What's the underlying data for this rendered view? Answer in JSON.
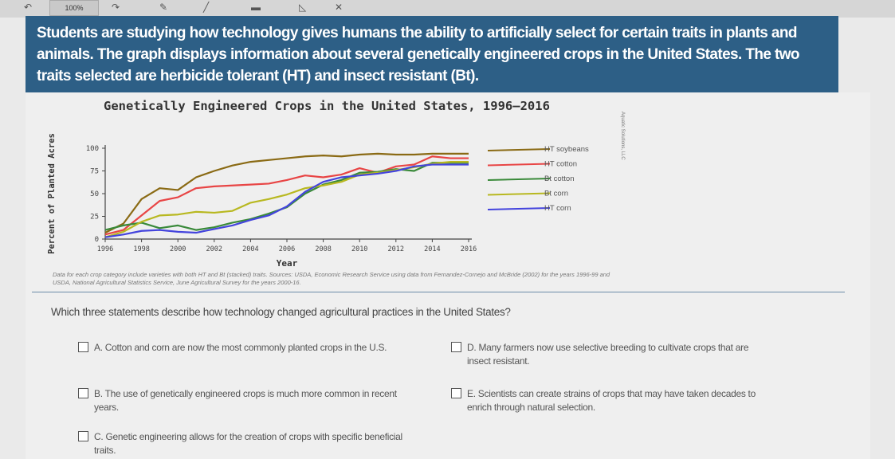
{
  "toolbar": {
    "zoom": "100%"
  },
  "banner": {
    "text": "Students are studying how technology gives humans the ability to artificially select for certain traits in plants and animals. The graph displays information about several genetically engineered crops in the United States. The two traits selected are herbicide tolerant (HT) and insect resistant (Bt)."
  },
  "chart_data": {
    "type": "line",
    "title": "Genetically Engineered Crops in the United States, 1996–2016",
    "xlabel": "Year",
    "ylabel": "Percent of Planted Acres",
    "x": [
      1996,
      1997,
      1998,
      1999,
      2000,
      2001,
      2002,
      2003,
      2004,
      2005,
      2006,
      2007,
      2008,
      2009,
      2010,
      2011,
      2012,
      2013,
      2014,
      2015,
      2016
    ],
    "x_ticks": [
      "1996",
      "1998",
      "2000",
      "2002",
      "2004",
      "2006",
      "2008",
      "2010",
      "2012",
      "2014",
      "2016"
    ],
    "y_ticks": [
      "0",
      "25",
      "50",
      "75",
      "100"
    ],
    "ylim": [
      0,
      100
    ],
    "legend_position": "right",
    "series": [
      {
        "name": "HT soybeans",
        "color": "#8a6a14",
        "values": [
          7,
          17,
          44,
          56,
          54,
          68,
          75,
          81,
          85,
          87,
          89,
          91,
          92,
          91,
          93,
          94,
          93,
          93,
          94,
          94,
          94
        ]
      },
      {
        "name": "HT cotton",
        "color": "#e84545",
        "values": [
          5,
          10,
          26,
          42,
          46,
          56,
          58,
          59,
          60,
          61,
          65,
          70,
          68,
          71,
          78,
          73,
          80,
          82,
          91,
          89,
          89
        ]
      },
      {
        "name": "Bt cotton",
        "color": "#3a8a3a",
        "values": [
          10,
          15,
          18,
          12,
          15,
          10,
          13,
          18,
          22,
          28,
          35,
          50,
          60,
          65,
          73,
          74,
          77,
          75,
          84,
          84,
          84
        ]
      },
      {
        "name": "Bt corn",
        "color": "#b8b820",
        "values": [
          2,
          8,
          19,
          26,
          27,
          30,
          29,
          31,
          40,
          44,
          49,
          56,
          59,
          63,
          71,
          73,
          76,
          79,
          83,
          85,
          85
        ]
      },
      {
        "name": "HT corn",
        "color": "#4444dd",
        "values": [
          2,
          5,
          9,
          10,
          8,
          7,
          11,
          15,
          21,
          26,
          36,
          52,
          63,
          68,
          70,
          72,
          75,
          80,
          82,
          82,
          82
        ]
      }
    ]
  },
  "chart_note": "Aquatic Solutions, LLC",
  "footnote": "Data for each crop category include varieties with both HT and Bt (stacked) traits. Sources: USDA, Economic Research Service using data from Fernandez-Cornejo and McBride (2002) for the years 1996-99 and USDA, National Agricultural Statistics Service, June Agricultural Survey for the years 2000-16.",
  "question": "Which three statements describe how technology changed agricultural practices in the United States?",
  "options": [
    {
      "label": "A.",
      "text": "Cotton and corn are now the most commonly planted crops in the U.S."
    },
    {
      "label": "B.",
      "text": "The use of genetically engineered crops is much more common in recent years."
    },
    {
      "label": "C.",
      "text": "Genetic engineering allows for the creation of crops with specific beneficial traits."
    },
    {
      "label": "D.",
      "text": "Many farmers now use selective breeding to cultivate crops that are insect resistant."
    },
    {
      "label": "E.",
      "text": "Scientists can create strains of crops that may have taken decades to enrich through natural selection."
    }
  ]
}
